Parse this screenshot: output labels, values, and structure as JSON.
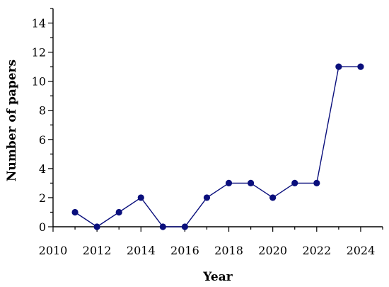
{
  "chart_data": {
    "type": "line",
    "title": "",
    "xlabel": "Year",
    "ylabel": "Number of papers",
    "xlim": [
      2010,
      2025
    ],
    "ylim": [
      0,
      15
    ],
    "x_ticks": [
      2010,
      2012,
      2014,
      2016,
      2018,
      2020,
      2022,
      2024
    ],
    "y_ticks": [
      0,
      2,
      4,
      6,
      8,
      10,
      12,
      14
    ],
    "grid": false,
    "series": [
      {
        "color": "#0a0f7c",
        "x": [
          2011,
          2012,
          2013,
          2014,
          2015,
          2016,
          2017,
          2018,
          2019,
          2020,
          2021,
          2022,
          2023,
          2024
        ],
        "y": [
          1,
          0,
          1,
          2,
          0,
          0,
          2,
          3,
          3,
          2,
          3,
          3,
          11,
          11
        ]
      }
    ]
  }
}
